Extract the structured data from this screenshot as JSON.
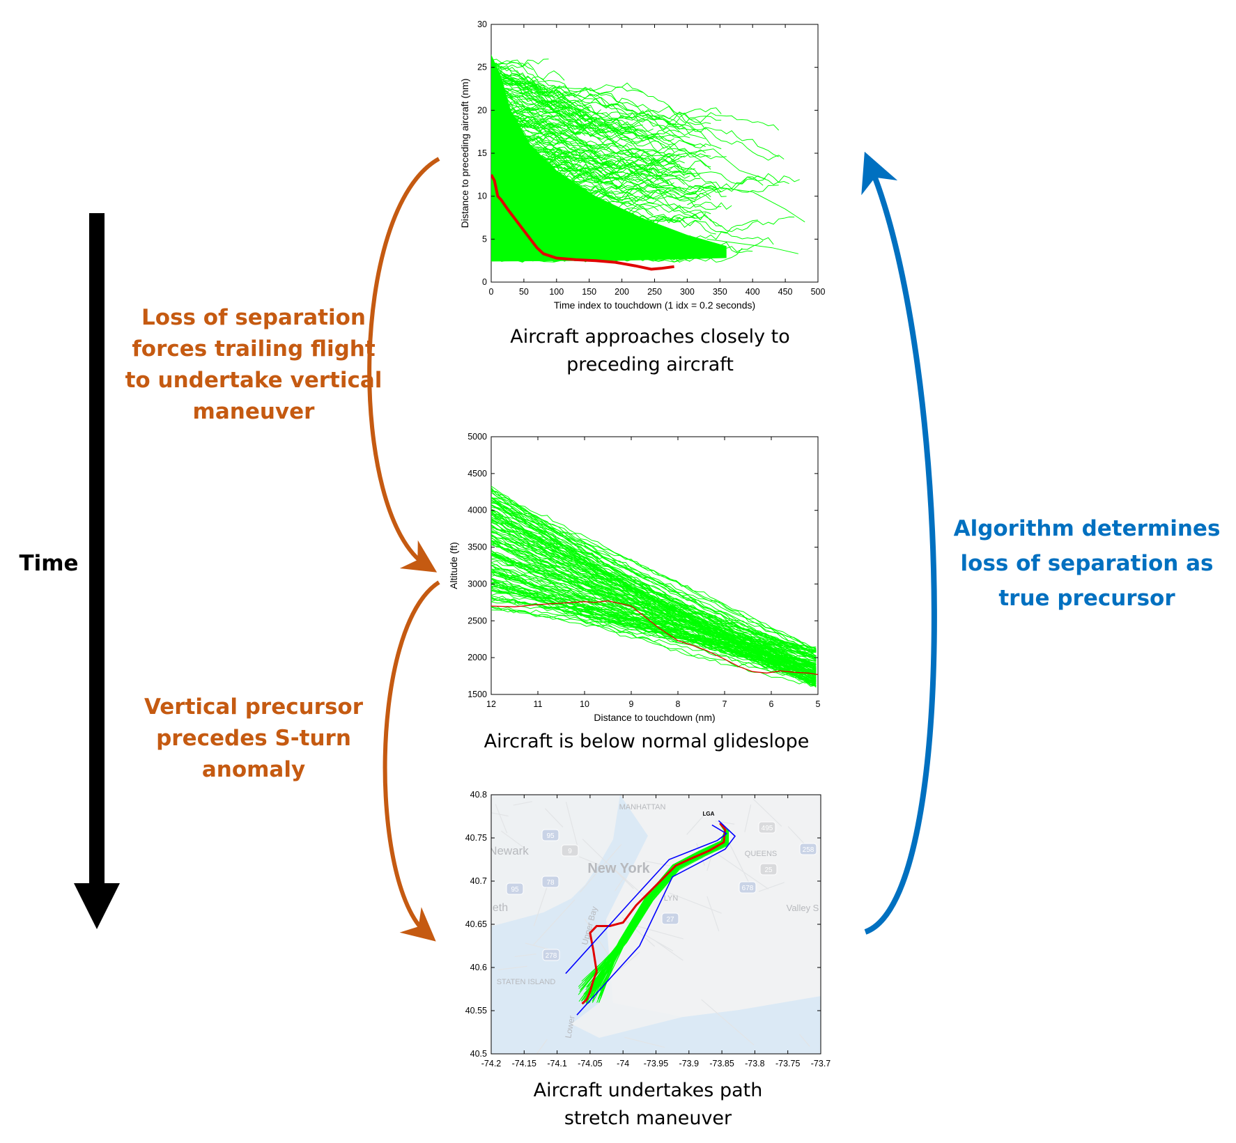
{
  "colors": {
    "orange": "#c55a11",
    "blue": "#0070c0",
    "black": "#000000",
    "trajectory": "#00ff00",
    "highlight": "#e00000",
    "corridor": "#0000ff"
  },
  "time_axis": {
    "label": "Time"
  },
  "labels": {
    "left_top": [
      "Loss of separation",
      "forces trailing flight",
      "to undertake vertical",
      "maneuver"
    ],
    "left_bottom": [
      "Vertical precursor",
      "precedes S-turn",
      "anomaly"
    ],
    "right": [
      "Algorithm determines",
      "loss of separation as",
      "true precursor"
    ]
  },
  "captions": {
    "chart1": [
      "Aircraft approaches closely to",
      "preceding aircraft"
    ],
    "chart2": [
      "Aircraft is below normal glideslope"
    ],
    "chart3": [
      "Aircraft undertakes path",
      "stretch maneuver"
    ]
  },
  "map": {
    "places": [
      "MANHATTAN",
      "LGA",
      "Newark",
      "New York",
      "QUEENS",
      "LYN",
      "eth",
      "Valley S",
      "STATEN ISLAND",
      "Upper Bay",
      "Lower"
    ],
    "highways": [
      "95",
      "9",
      "78",
      "95",
      "495",
      "278",
      "27",
      "25",
      "678",
      "258"
    ]
  },
  "chart_data": [
    {
      "type": "line",
      "xlabel": "Time index to touchdown (1 idx = 0.2 seconds)",
      "ylabel": "Distance to preceding aircraft (nm)",
      "xlim": [
        0,
        500
      ],
      "ylim": [
        0,
        30
      ],
      "xticks": [
        0,
        50,
        100,
        150,
        200,
        250,
        300,
        350,
        400,
        450,
        500
      ],
      "yticks": [
        0,
        5,
        10,
        15,
        20,
        25,
        30
      ],
      "series": [
        {
          "role": "highlight",
          "x": [
            0,
            5,
            10,
            15,
            25,
            40,
            55,
            70,
            80,
            100,
            130,
            160,
            190,
            220,
            245,
            260,
            280
          ],
          "y": [
            12.5,
            11.8,
            10.0,
            9.6,
            8.5,
            7.0,
            5.5,
            4.0,
            3.3,
            2.8,
            2.6,
            2.5,
            2.3,
            1.9,
            1.5,
            1.6,
            1.8
          ]
        }
      ]
    },
    {
      "type": "line",
      "xlabel": "Distance to touchdown (nm)",
      "ylabel": "Altitude (ft)",
      "xlim": [
        12,
        5
      ],
      "ylim": [
        1500,
        5000
      ],
      "xticks": [
        12,
        11,
        10,
        9,
        8,
        7,
        6,
        5
      ],
      "yticks": [
        1500,
        2000,
        2500,
        3000,
        3500,
        4000,
        4500,
        5000
      ],
      "series": [
        {
          "role": "highlight",
          "x": [
            12,
            11.5,
            11,
            10.5,
            10,
            9.8,
            9.5,
            9.2,
            9.0,
            8.7,
            8.4,
            8.0,
            7.7,
            7.4,
            7.0,
            6.7,
            6.4,
            6.1,
            5.8,
            5.5,
            5.2,
            5.0
          ],
          "y": [
            2700,
            2690,
            2720,
            2740,
            2760,
            2750,
            2770,
            2730,
            2700,
            2550,
            2400,
            2230,
            2170,
            2100,
            1980,
            1880,
            1810,
            1790,
            1820,
            1800,
            1790,
            1770
          ]
        }
      ]
    },
    {
      "type": "line",
      "xlabel": "",
      "ylabel": "",
      "xlim": [
        -74.2,
        -73.7
      ],
      "ylim": [
        40.5,
        40.8
      ],
      "xticks": [
        -74.2,
        -74.15,
        -74.1,
        -74.05,
        -74,
        -73.95,
        -73.9,
        -73.85,
        -73.8,
        -73.75,
        -73.7
      ],
      "yticks": [
        40.5,
        40.55,
        40.6,
        40.65,
        40.7,
        40.75,
        40.8
      ],
      "series": [
        {
          "role": "highlight",
          "x": [
            -73.853,
            -73.845,
            -73.847,
            -73.87,
            -73.9,
            -73.92,
            -73.95,
            -73.98,
            -74.0,
            -74.02,
            -74.04,
            -74.05,
            -74.045,
            -74.04,
            -74.045,
            -74.05,
            -74.055,
            -74.062
          ],
          "y": [
            40.767,
            40.76,
            40.745,
            40.735,
            40.725,
            40.718,
            40.695,
            40.672,
            40.652,
            40.648,
            40.648,
            40.64,
            40.62,
            40.595,
            40.585,
            40.572,
            40.563,
            40.558
          ]
        },
        {
          "role": "corridor",
          "x": [
            -73.855,
            -73.83,
            -73.845,
            -73.925,
            -73.975,
            -74.07
          ],
          "y": [
            40.77,
            40.752,
            40.737,
            40.705,
            40.625,
            40.545
          ]
        },
        {
          "role": "corridor",
          "x": [
            -73.865,
            -73.843,
            -73.857,
            -73.93,
            -73.99,
            -74.087
          ],
          "y": [
            40.765,
            40.755,
            40.747,
            40.725,
            40.675,
            40.593
          ]
        }
      ]
    }
  ]
}
